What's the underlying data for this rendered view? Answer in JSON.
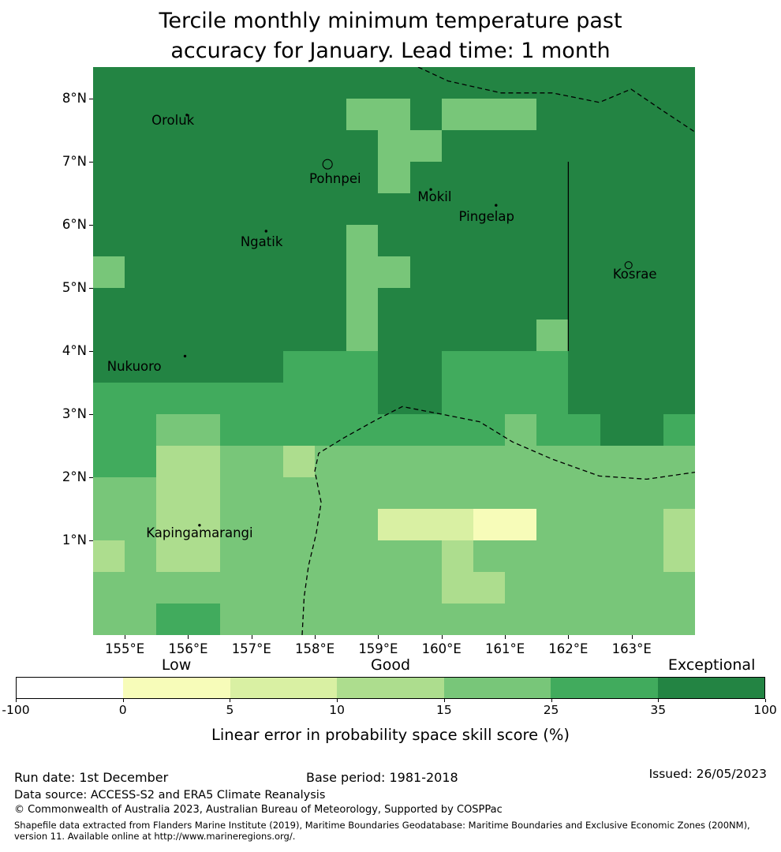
{
  "title": "Tercile monthly minimum temperature past\naccuracy for January. Lead time: 1 month",
  "chart_data": {
    "type": "heatmap",
    "title": "Tercile monthly minimum temperature past accuracy for January. Lead time: 1 month",
    "colorbar_label": "Linear error in probability space skill score (%)",
    "lon_range": [
      154.5,
      164.0
    ],
    "lat_range": [
      -0.5,
      8.5
    ],
    "cell_size_deg": 0.5,
    "x_ticks": [
      {
        "label": "155°E",
        "lon": 155
      },
      {
        "label": "156°E",
        "lon": 156
      },
      {
        "label": "157°E",
        "lon": 157
      },
      {
        "label": "158°E",
        "lon": 158
      },
      {
        "label": "159°E",
        "lon": 159
      },
      {
        "label": "160°E",
        "lon": 160
      },
      {
        "label": "161°E",
        "lon": 161
      },
      {
        "label": "162°E",
        "lon": 162
      },
      {
        "label": "163°E",
        "lon": 163
      }
    ],
    "y_ticks": [
      {
        "label": "8°N",
        "lat": 8
      },
      {
        "label": "7°N",
        "lat": 7
      },
      {
        "label": "6°N",
        "lat": 6
      },
      {
        "label": "5°N",
        "lat": 5
      },
      {
        "label": "4°N",
        "lat": 4
      },
      {
        "label": "3°N",
        "lat": 3
      },
      {
        "label": "2°N",
        "lat": 2
      },
      {
        "label": "1°N",
        "lat": 1
      }
    ],
    "classes": [
      {
        "range": "-100 to 0",
        "color": "#ffffff"
      },
      {
        "range": "0 to 5",
        "color": "#f7fcb9"
      },
      {
        "range": "5 to 10",
        "color": "#d9f0a3"
      },
      {
        "range": "10 to 15",
        "color": "#addd8e"
      },
      {
        "range": "15 to 25",
        "color": "#78c679"
      },
      {
        "range": "25 to 35",
        "color": "#41ab5d"
      },
      {
        "range": "35 to 100",
        "color": "#238443"
      }
    ],
    "grid_rows_top_to_bottom": [
      "6666666666666666666",
      "6666666644644466666",
      "6666666664466666666",
      "6666666664666666666",
      "6666666666666666666",
      "6666666646666666666",
      "4666666644666666666",
      "6666666646666666666",
      "6666666646666646666",
      "6666665556655556666",
      "5555555556655556666",
      "5544555555555455665",
      "5533443444444444444",
      "4433444444444444444",
      "4433444442221144443",
      "3433444444434444443",
      "4444444444433444444",
      "4455444444444444444"
    ],
    "colorbar_ticks": [
      "-100",
      "0",
      "5",
      "10",
      "15",
      "25",
      "35",
      "100"
    ],
    "legend_categories": [
      {
        "label": "Low",
        "segment_index": 1
      },
      {
        "label": "Good",
        "segment_index": 3
      },
      {
        "label": "Exceptional",
        "segment_index": 6
      }
    ],
    "places": [
      {
        "name": "Oroluk",
        "label_lon": 155.76,
        "label_lat": 7.65,
        "marker": {
          "type": "dot",
          "lon": 155.98,
          "lat": 7.74
        }
      },
      {
        "name": "Pohnpei",
        "label_lon": 158.32,
        "label_lat": 6.73,
        "marker": {
          "type": "outline",
          "lon": 158.2,
          "lat": 6.96,
          "r": 6
        }
      },
      {
        "name": "Mokil",
        "label_lon": 159.89,
        "label_lat": 6.44,
        "marker": {
          "type": "dot",
          "lon": 159.83,
          "lat": 6.56
        }
      },
      {
        "name": "Pingelap",
        "label_lon": 160.71,
        "label_lat": 6.13,
        "marker": {
          "type": "dot",
          "lon": 160.86,
          "lat": 6.31
        }
      },
      {
        "name": "Ngatik",
        "label_lon": 157.16,
        "label_lat": 5.73,
        "marker": {
          "type": "dot",
          "lon": 157.23,
          "lat": 5.9
        }
      },
      {
        "name": "Kosrae",
        "label_lon": 163.05,
        "label_lat": 5.21,
        "marker": {
          "type": "outline",
          "lon": 162.95,
          "lat": 5.36,
          "r": 4.5
        }
      },
      {
        "name": "Nukuoro",
        "label_lon": 155.15,
        "label_lat": 3.75,
        "marker": {
          "type": "dot",
          "lon": 155.95,
          "lat": 3.92
        }
      },
      {
        "name": "Kapingamarangi",
        "label_lon": 156.18,
        "label_lat": 1.11,
        "marker": {
          "type": "dot",
          "lon": 156.18,
          "lat": 1.24
        }
      }
    ],
    "boundaries": {
      "dashed": [
        [
          [
            159.63,
            8.5
          ],
          [
            160.1,
            8.28
          ],
          [
            160.94,
            8.09
          ],
          [
            161.75,
            8.09
          ],
          [
            162.49,
            7.94
          ],
          [
            162.99,
            8.15
          ],
          [
            163.49,
            7.81
          ],
          [
            164.0,
            7.47
          ]
        ],
        [
          [
            157.8,
            -0.5
          ],
          [
            157.83,
            0.1
          ],
          [
            157.9,
            0.6
          ],
          [
            158.02,
            1.1
          ],
          [
            158.1,
            1.6
          ],
          [
            158.0,
            2.1
          ],
          [
            158.06,
            2.38
          ],
          [
            158.45,
            2.62
          ],
          [
            158.95,
            2.9
          ],
          [
            159.38,
            3.12
          ],
          [
            160.0,
            3.0
          ],
          [
            160.6,
            2.88
          ],
          [
            161.12,
            2.56
          ],
          [
            161.74,
            2.29
          ],
          [
            162.49,
            2.02
          ],
          [
            163.24,
            1.97
          ],
          [
            164.0,
            2.08
          ]
        ]
      ],
      "solid": [
        [
          [
            162.0,
            7.0
          ],
          [
            162.0,
            4.0
          ]
        ]
      ]
    }
  },
  "footer": {
    "run_date": "Run date: 1st December",
    "base_period": "Base period: 1981-2018",
    "issued": "Issued: 26/05/2023",
    "data_source": "Data source: ACCESS-S2 and ERA5 Climate Reanalysis",
    "copyright": "© Commonwealth of Australia 2023, Australian Bureau of Meteorology, Supported by COSPPac",
    "shapefile_note": "Shapefile data extracted from Flanders Marine Institute (2019), Maritime Boundaries Geodatabase: Maritime Boundaries and Exclusive Economic Zones (200NM), version 11. Available online at http://www.marineregions.org/."
  }
}
